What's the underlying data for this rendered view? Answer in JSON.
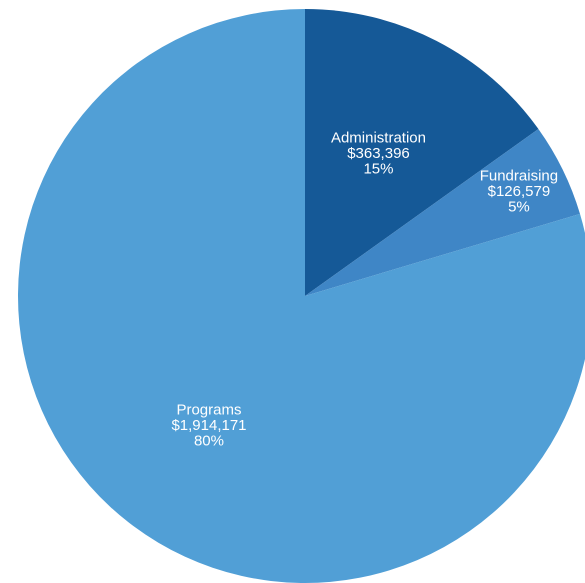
{
  "chart_data": {
    "type": "pie",
    "slices": [
      {
        "name": "Administration",
        "value": 363396,
        "value_label": "$363,396",
        "percent_label": "15%",
        "color": "#155997"
      },
      {
        "name": "Fundraising",
        "value": 126579,
        "value_label": "$126,579",
        "percent_label": "5%",
        "color": "#3f86c6"
      },
      {
        "name": "Programs",
        "value": 1914171,
        "value_label": "$1,914,171",
        "percent_label": "80%",
        "color": "#519fd6"
      }
    ],
    "start_angle": "12 o'clock",
    "direction": "clockwise",
    "legend": "none"
  }
}
